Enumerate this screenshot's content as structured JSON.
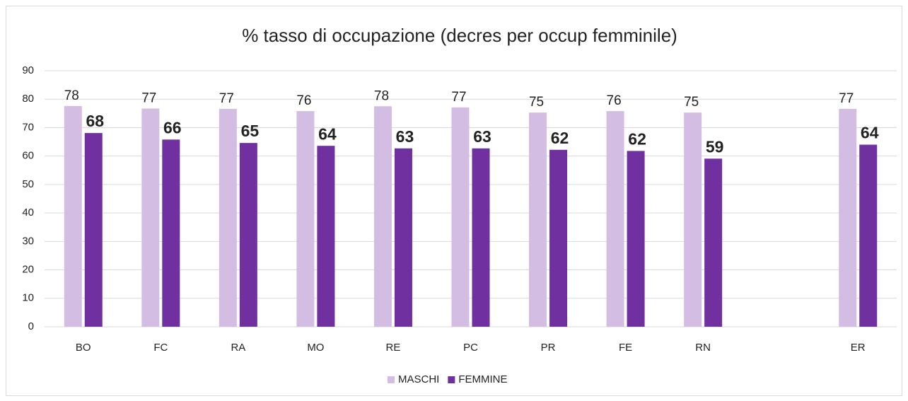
{
  "chart_data": {
    "type": "bar",
    "title": "% tasso di occupazione (decres per occup femminile)",
    "categories": [
      "BO",
      "FC",
      "RA",
      "MO",
      "RE",
      "PC",
      "PR",
      "FE",
      "RN",
      null,
      "ER"
    ],
    "series": [
      {
        "name": "MASCHI",
        "color": "#d4bde3",
        "values": [
          77.6,
          76.7,
          76.6,
          75.8,
          77.5,
          77.1,
          75.3,
          75.8,
          75.3,
          null,
          76.6
        ],
        "value_labels": [
          "78",
          "77",
          "77",
          "76",
          "78",
          "77",
          "75",
          "76",
          "75",
          null,
          "77"
        ]
      },
      {
        "name": "FEMMINE",
        "color": "#7030a0",
        "values": [
          68.1,
          65.8,
          64.6,
          63.6,
          62.7,
          62.7,
          62.2,
          61.8,
          59.1,
          null,
          64.0
        ],
        "value_labels": [
          "68",
          "66",
          "65",
          "64",
          "63",
          "63",
          "62",
          "62",
          "59",
          null,
          "64"
        ]
      }
    ],
    "ylim": [
      0,
      90
    ],
    "yticks": [
      0,
      10,
      20,
      30,
      40,
      50,
      60,
      70,
      80,
      90
    ],
    "grid": true,
    "legend": "bottom"
  }
}
